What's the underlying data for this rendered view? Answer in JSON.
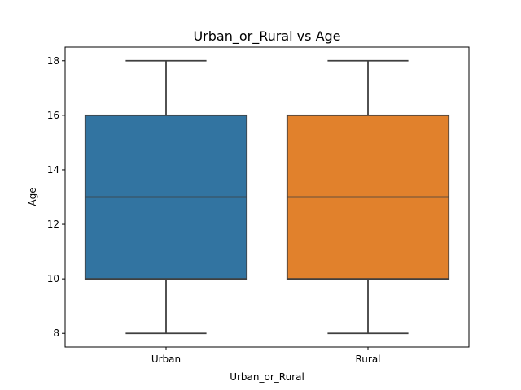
{
  "chart_data": {
    "type": "box",
    "title": "Urban_or_Rural vs Age",
    "xlabel": "Urban_or_Rural",
    "ylabel": "Age",
    "ylim": [
      7.5,
      18.5
    ],
    "yticks": [
      8,
      10,
      12,
      14,
      16,
      18
    ],
    "grid": false,
    "categories": [
      "Urban",
      "Rural"
    ],
    "boxes": [
      {
        "category": "Urban",
        "min": 8,
        "q1": 10,
        "median": 13,
        "q3": 16,
        "max": 18,
        "color": "#3274a1"
      },
      {
        "category": "Rural",
        "min": 8,
        "q1": 10,
        "median": 13,
        "q3": 16,
        "max": 18,
        "color": "#e1812c"
      }
    ],
    "line_color": "#3f3f3f"
  }
}
